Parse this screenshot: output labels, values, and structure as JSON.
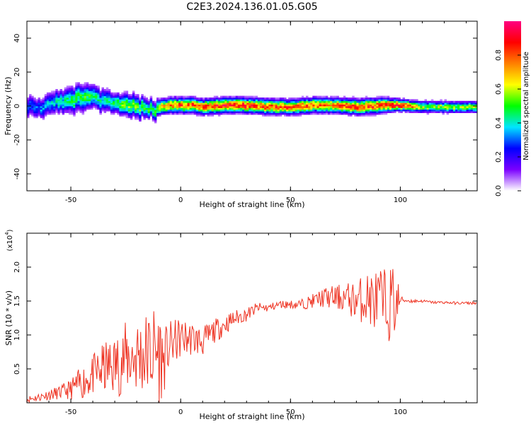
{
  "title": "C2E3.2024.136.01.05.G05",
  "colors": {
    "frame": "#000000",
    "snr_line": "#ee3322",
    "spectrogram_background": "#ffffff"
  },
  "chart_data": [
    {
      "type": "heatmap",
      "name": "spectrogram",
      "xlabel": "Height of straight line (km)",
      "ylabel": "Frequency (Hz)",
      "xlim": [
        -70,
        135
      ],
      "ylim": [
        -50,
        50
      ],
      "xticks": [
        -50,
        0,
        50,
        100
      ],
      "xtick_labels": [
        "-50",
        "0",
        "50",
        "100"
      ],
      "yticks": [
        -40,
        -20,
        0,
        20,
        40
      ],
      "ytick_labels": [
        "-40",
        "-20",
        "0",
        "20",
        "40"
      ],
      "colorbar": {
        "label": "Normalized spectral amplitude",
        "range": [
          0,
          1
        ],
        "ticks": [
          0.0,
          0.2,
          0.4,
          0.6,
          0.8
        ],
        "tick_labels": [
          "0.0",
          "0.2",
          "0.4",
          "0.6",
          "0.8"
        ],
        "colormap": [
          "#ffffff",
          "#7b00ff",
          "#0000ff",
          "#00e5ff",
          "#00ff00",
          "#ffff00",
          "#ff8000",
          "#ff0000",
          "#ff0080"
        ]
      },
      "ridge": {
        "x": [
          -70,
          -65,
          -60,
          -55,
          -50,
          -45,
          -40,
          -35,
          -30,
          -25,
          -20,
          -15,
          -12,
          -10,
          -5,
          0,
          5,
          10,
          20,
          30,
          40,
          50,
          60,
          70,
          80,
          90,
          100,
          110,
          120,
          135
        ],
        "freq_center": [
          0,
          -2,
          0,
          2,
          3,
          5,
          4,
          2,
          1,
          0,
          -1,
          -2,
          -3,
          -1,
          0,
          0,
          0,
          -1,
          0,
          0,
          -1,
          -1,
          0,
          0,
          -1,
          0,
          0,
          -1,
          -1,
          -1
        ],
        "half_width": [
          6,
          5,
          6,
          6,
          7,
          7,
          6,
          6,
          5,
          6,
          6,
          5,
          5,
          4,
          4,
          4,
          4,
          4,
          4,
          4,
          4,
          4,
          4,
          4,
          4,
          4,
          3,
          3,
          3,
          3
        ],
        "peak_amplitude": [
          0.3,
          0.35,
          0.4,
          0.45,
          0.5,
          0.55,
          0.5,
          0.45,
          0.55,
          0.6,
          0.55,
          0.5,
          0.55,
          0.7,
          0.8,
          0.85,
          0.85,
          0.9,
          0.9,
          0.9,
          0.85,
          0.85,
          0.85,
          0.8,
          0.9,
          0.9,
          0.95,
          0.6,
          0.6,
          0.6
        ]
      }
    },
    {
      "type": "line",
      "name": "snr",
      "xlabel": "Height of straight line (km)",
      "ylabel": "SNR (10 * v/v)",
      "multiplier_label": "(x10",
      "multiplier_exponent": "4",
      "xlim": [
        -70,
        135
      ],
      "ylim": [
        0,
        2.5
      ],
      "xticks": [
        -50,
        0,
        50,
        100
      ],
      "xtick_labels": [
        "-50",
        "0",
        "50",
        "100"
      ],
      "yticks": [
        0.5,
        1.0,
        1.5,
        2.0
      ],
      "ytick_labels": [
        "0.5",
        "1.0",
        "1.5",
        "2.0"
      ],
      "series": [
        {
          "color": "#ee3322",
          "x": [
            -70,
            -65,
            -60,
            -55,
            -50,
            -45,
            -40,
            -35,
            -30,
            -25,
            -20,
            -15,
            -10,
            -8,
            -5,
            0,
            5,
            10,
            15,
            20,
            25,
            30,
            35,
            40,
            45,
            50,
            55,
            60,
            65,
            70,
            75,
            80,
            85,
            88,
            90,
            93,
            95,
            97,
            99,
            100,
            105,
            110,
            115,
            120,
            125,
            130,
            135
          ],
          "y": [
            0.05,
            0.08,
            0.12,
            0.15,
            0.2,
            0.3,
            0.4,
            0.5,
            0.55,
            0.65,
            0.7,
            0.72,
            0.75,
            0.6,
            0.85,
            0.95,
            0.95,
            0.9,
            1.05,
            1.15,
            1.25,
            1.3,
            1.4,
            1.4,
            1.45,
            1.45,
            1.45,
            1.5,
            1.55,
            1.55,
            1.55,
            1.5,
            1.55,
            1.5,
            1.5,
            1.4,
            1.45,
            1.5,
            1.45,
            1.52,
            1.5,
            1.5,
            1.48,
            1.48,
            1.47,
            1.47,
            1.47
          ],
          "noise_amplitude": [
            0.05,
            0.06,
            0.08,
            0.1,
            0.15,
            0.25,
            0.3,
            0.4,
            0.45,
            0.55,
            0.6,
            0.65,
            0.8,
            0.5,
            0.35,
            0.3,
            0.25,
            0.22,
            0.18,
            0.15,
            0.12,
            0.1,
            0.08,
            0.06,
            0.06,
            0.06,
            0.08,
            0.1,
            0.15,
            0.18,
            0.22,
            0.3,
            0.4,
            0.45,
            0.5,
            0.6,
            0.55,
            0.6,
            0.4,
            0.05,
            0.03,
            0.02,
            0.02,
            0.02,
            0.02,
            0.02,
            0.02
          ]
        }
      ]
    }
  ]
}
